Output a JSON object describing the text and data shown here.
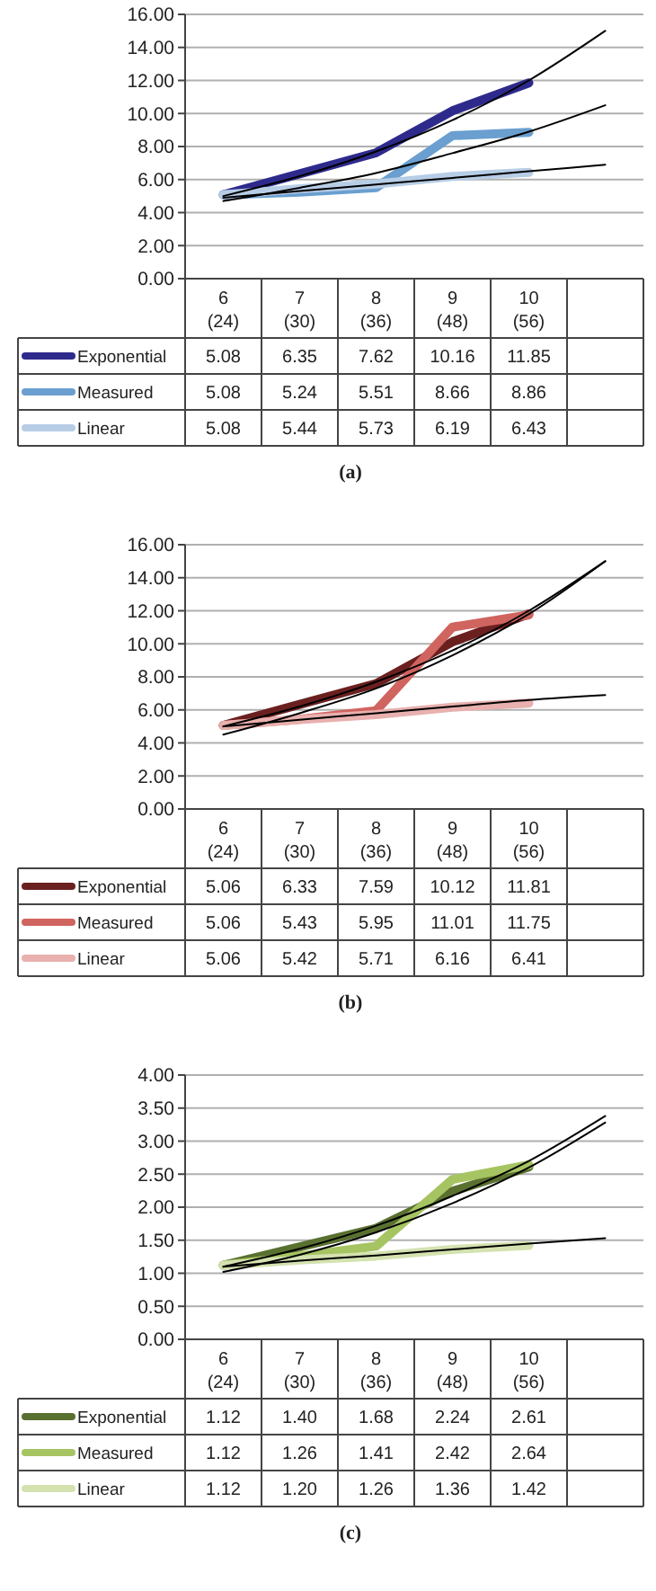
{
  "chart_data": [
    {
      "type": "line",
      "categories": [
        "6 (24)",
        "7 (30)",
        "8 (36)",
        "9 (48)",
        "10 (56)",
        null
      ],
      "ylim": [
        0,
        16
      ],
      "yticks": [
        {
          "value": 0,
          "label": "0.00"
        },
        {
          "value": 2,
          "label": "2.00"
        },
        {
          "value": 4,
          "label": "4.00"
        },
        {
          "value": 6,
          "label": "6.00"
        },
        {
          "value": 8,
          "label": "8.00"
        },
        {
          "value": 10,
          "label": "10.00"
        },
        {
          "value": 12,
          "label": "12.00"
        },
        {
          "value": 14,
          "label": "14.00"
        },
        {
          "value": 16,
          "label": "16.00"
        }
      ],
      "grid": "y",
      "legend": "bottom",
      "annotations": [
        "(a)"
      ],
      "series": [
        {
          "name": "Exponential",
          "color": "#2e2a8c",
          "values": [
            5.08,
            6.35,
            7.62,
            10.16,
            11.85,
            null
          ],
          "value_labels": [
            "5.08",
            "6.35",
            "7.62",
            "10.16",
            "11.85",
            null
          ]
        },
        {
          "name": "Measured",
          "color": "#6a9fd0",
          "values": [
            5.08,
            5.24,
            5.51,
            8.66,
            8.86,
            null
          ],
          "value_labels": [
            "5.08",
            "5.24",
            "5.51",
            "8.66",
            "8.86",
            null
          ]
        },
        {
          "name": "Linear",
          "color": "#b7cde6",
          "values": [
            5.08,
            5.44,
            5.73,
            6.19,
            6.43,
            null
          ],
          "value_labels": [
            "5.08",
            "5.44",
            "5.73",
            "6.19",
            "6.43",
            null
          ]
        },
        {
          "type": "line",
          "color": "#000000",
          "values": [
            5.0,
            6.2,
            7.7,
            9.6,
            12.0,
            15.0
          ]
        },
        {
          "type": "line",
          "color": "#000000",
          "values": [
            4.7,
            5.5,
            6.4,
            7.6,
            8.9,
            10.5
          ]
        },
        {
          "type": "line",
          "color": "#000000",
          "values": [
            4.9,
            5.3,
            5.7,
            6.1,
            6.5,
            6.9
          ]
        }
      ]
    },
    {
      "type": "line",
      "categories": [
        "6 (24)",
        "7 (30)",
        "8 (36)",
        "9 (48)",
        "10 (56)",
        null
      ],
      "ylim": [
        0,
        16
      ],
      "yticks": [
        {
          "value": 0,
          "label": "0.00"
        },
        {
          "value": 2,
          "label": "2.00"
        },
        {
          "value": 4,
          "label": "4.00"
        },
        {
          "value": 6,
          "label": "6.00"
        },
        {
          "value": 8,
          "label": "8.00"
        },
        {
          "value": 10,
          "label": "10.00"
        },
        {
          "value": 12,
          "label": "12.00"
        },
        {
          "value": 14,
          "label": "14.00"
        },
        {
          "value": 16,
          "label": "16.00"
        }
      ],
      "grid": "y",
      "legend": "bottom",
      "annotations": [
        "(b)"
      ],
      "series": [
        {
          "name": "Exponential",
          "color": "#6b2020",
          "values": [
            5.06,
            6.33,
            7.59,
            10.12,
            11.81,
            null
          ],
          "value_labels": [
            "5.06",
            "6.33",
            "7.59",
            "10.12",
            "11.81",
            null
          ]
        },
        {
          "name": "Measured",
          "color": "#d0645f",
          "values": [
            5.06,
            5.43,
            5.95,
            11.01,
            11.75,
            null
          ],
          "value_labels": [
            "5.06",
            "5.43",
            "5.95",
            "11.01",
            "11.75",
            null
          ]
        },
        {
          "name": "Linear",
          "color": "#e8b0ae",
          "values": [
            5.06,
            5.42,
            5.71,
            6.16,
            6.41,
            null
          ],
          "value_labels": [
            "5.06",
            "5.42",
            "5.71",
            "6.16",
            "6.41",
            null
          ]
        },
        {
          "type": "line",
          "color": "#000000",
          "values": [
            5.0,
            6.2,
            7.7,
            9.6,
            12.0,
            15.0
          ]
        },
        {
          "type": "line",
          "color": "#000000",
          "values": [
            4.5,
            5.8,
            7.3,
            9.3,
            11.8,
            15.0
          ]
        },
        {
          "type": "line",
          "color": "#000000",
          "values": [
            5.0,
            5.4,
            5.8,
            6.2,
            6.6,
            6.9
          ]
        }
      ]
    },
    {
      "type": "line",
      "categories": [
        "6 (24)",
        "7 (30)",
        "8 (36)",
        "9 (48)",
        "10 (56)",
        null
      ],
      "ylim": [
        0,
        4
      ],
      "yticks": [
        {
          "value": 0,
          "label": "0.00"
        },
        {
          "value": 0.5,
          "label": "0.50"
        },
        {
          "value": 1,
          "label": "1.00"
        },
        {
          "value": 1.5,
          "label": "1.50"
        },
        {
          "value": 2,
          "label": "2.00"
        },
        {
          "value": 2.5,
          "label": "2.50"
        },
        {
          "value": 3,
          "label": "3.00"
        },
        {
          "value": 3.5,
          "label": "3.50"
        },
        {
          "value": 4,
          "label": "4.00"
        }
      ],
      "grid": "y",
      "legend": "bottom",
      "annotations": [
        "(c)"
      ],
      "series": [
        {
          "name": "Exponential",
          "color": "#5a7030",
          "values": [
            1.12,
            1.4,
            1.68,
            2.24,
            2.61,
            null
          ],
          "value_labels": [
            "1.12",
            "1.40",
            "1.68",
            "2.24",
            "2.61",
            null
          ]
        },
        {
          "name": "Measured",
          "color": "#a6c462",
          "values": [
            1.12,
            1.26,
            1.41,
            2.42,
            2.64,
            null
          ],
          "value_labels": [
            "1.12",
            "1.26",
            "1.41",
            "2.42",
            "2.64",
            null
          ]
        },
        {
          "name": "Linear",
          "color": "#d4e2b0",
          "values": [
            1.12,
            1.2,
            1.26,
            1.36,
            1.42,
            null
          ],
          "value_labels": [
            "1.12",
            "1.20",
            "1.26",
            "1.36",
            "1.42",
            null
          ]
        },
        {
          "type": "line",
          "color": "#000000",
          "values": [
            1.1,
            1.37,
            1.72,
            2.17,
            2.7,
            3.38
          ]
        },
        {
          "type": "line",
          "color": "#000000",
          "values": [
            1.02,
            1.28,
            1.62,
            2.06,
            2.6,
            3.28
          ]
        },
        {
          "type": "line",
          "color": "#000000",
          "values": [
            1.1,
            1.19,
            1.27,
            1.36,
            1.45,
            1.53
          ]
        }
      ]
    }
  ]
}
